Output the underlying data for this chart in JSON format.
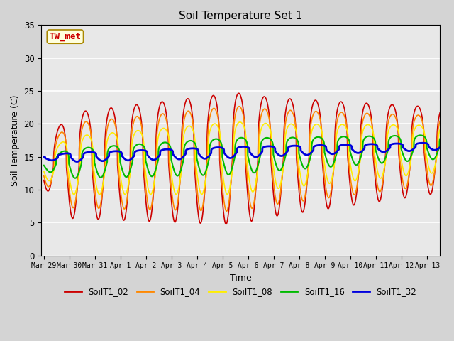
{
  "title": "Soil Temperature Set 1",
  "xlabel": "Time",
  "ylabel": "Soil Temperature (C)",
  "ylim": [
    0,
    35
  ],
  "annotation": "TW_met",
  "annotation_color": "#cc0000",
  "annotation_bg": "#ffffdd",
  "series": [
    "SoilT1_02",
    "SoilT1_04",
    "SoilT1_08",
    "SoilT1_16",
    "SoilT1_32"
  ],
  "colors": [
    "#cc0000",
    "#ff8800",
    "#ffee00",
    "#00bb00",
    "#0000dd"
  ],
  "tick_labels": [
    "Mar 29",
    "Mar 30",
    "Mar 31",
    "Apr 1",
    "Apr 2",
    "Apr 3",
    "Apr 4",
    "Apr 5",
    "Apr 6",
    "Apr 7",
    "Apr 8",
    "Apr 9",
    "Apr 10",
    "Apr 11",
    "Apr 12",
    "Apr 13"
  ],
  "tick_positions": [
    0,
    1,
    2,
    3,
    4,
    5,
    6,
    7,
    8,
    9,
    10,
    11,
    12,
    13,
    14,
    15
  ],
  "yticks": [
    0,
    5,
    10,
    15,
    20,
    25,
    30,
    35
  ]
}
